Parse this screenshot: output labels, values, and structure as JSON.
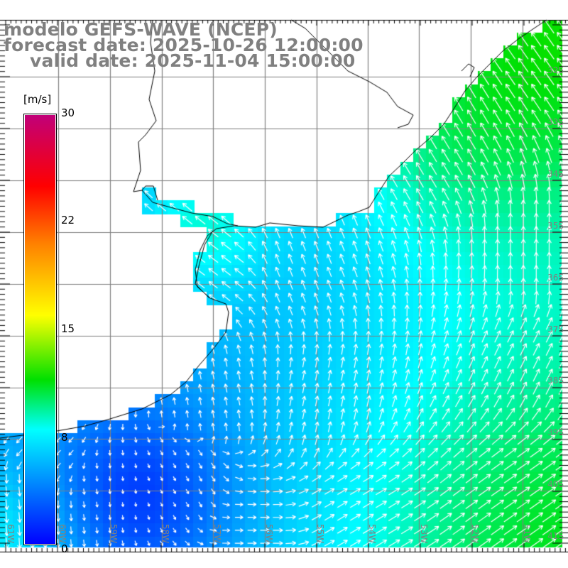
{
  "title": {
    "line1": "modelo GEFS-WAVE (NCEP)",
    "line2": "forecast date: 2025-10-26 12:00:00",
    "line3": "valid date: 2025-11-04 15:00:00"
  },
  "colorbar": {
    "unit": "[m/s]",
    "ticks": [
      "30",
      "22",
      "15",
      "8",
      "0"
    ],
    "range": [
      0,
      30
    ],
    "stops": [
      {
        "v": 0,
        "color": "#0000ff"
      },
      {
        "v": 8,
        "color": "#00ffff"
      },
      {
        "v": 11.5,
        "color": "#00e000"
      },
      {
        "v": 16,
        "color": "#ffff00"
      },
      {
        "v": 21,
        "color": "#ff8000"
      },
      {
        "v": 25,
        "color": "#ff0000"
      },
      {
        "v": 30,
        "color": "#c0007a"
      }
    ]
  },
  "latitudes": [
    "32S",
    "33S",
    "34S",
    "35S",
    "36S",
    "37S",
    "38S",
    "39S",
    "40S",
    "41S"
  ],
  "longitudes": [
    "61W",
    "60W",
    "59W",
    "58W",
    "57W",
    "56W",
    "55W",
    "54W",
    "53W",
    "52W",
    "51W"
  ],
  "colors": {
    "grid": "#808080",
    "coast": "#000000",
    "land": "#ffffff",
    "arrow": "#ffffff",
    "label": "#808080"
  }
}
